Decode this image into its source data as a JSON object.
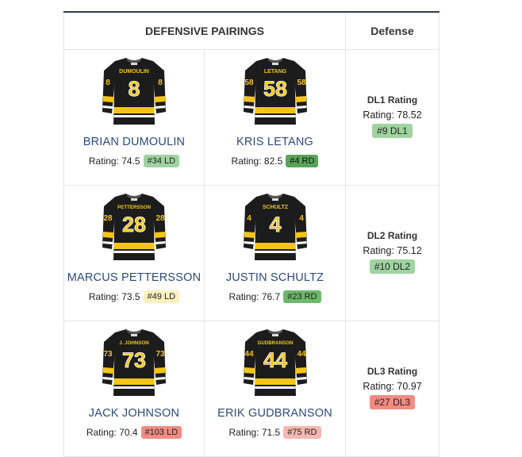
{
  "header": {
    "pairings": "DEFENSIVE PAIRINGS",
    "defense": "Defense"
  },
  "colors": {
    "green_light": "#9fd39f",
    "green_dark": "#5aa45a",
    "yellow": "#fbf0c0",
    "red": "#f28b82",
    "red_light": "#f5b7b1",
    "jersey_black": "#1c1c1c",
    "jersey_gold": "#f4c518"
  },
  "rating_prefix": "Rating:",
  "pairs": [
    {
      "players": [
        {
          "jersey_name": "DUMOULIN",
          "number": "8",
          "name": "BRIAN DUMOULIN",
          "rating": "74.5",
          "badge": "#34 LD",
          "badge_color": "#9fd39f"
        },
        {
          "jersey_name": "LETANG",
          "number": "58",
          "name": "KRIS LETANG",
          "rating": "82.5",
          "badge": "#4 RD",
          "badge_color": "#5aa45a"
        }
      ],
      "dl_label": "DL1 Rating",
      "dl_value": "Rating: 78.52",
      "dl_badge": "#9 DL1",
      "dl_badge_color": "#9fd39f"
    },
    {
      "players": [
        {
          "jersey_name": "PETTERSSON",
          "number": "28",
          "name": "MARCUS PETTERSSON",
          "rating": "73.5",
          "badge": "#49 LD",
          "badge_color": "#fbf0c0"
        },
        {
          "jersey_name": "SCHULTZ",
          "number": "4",
          "name": "JUSTIN SCHULTZ",
          "rating": "76.7",
          "badge": "#23 RD",
          "badge_color": "#6db86d"
        }
      ],
      "dl_label": "DL2 Rating",
      "dl_value": "Rating: 75.12",
      "dl_badge": "#10 DL2",
      "dl_badge_color": "#9fd39f"
    },
    {
      "players": [
        {
          "jersey_name": "J. JOHNSON",
          "number": "73",
          "name": "JACK JOHNSON",
          "rating": "70.4",
          "badge": "#103 LD",
          "badge_color": "#f28b82"
        },
        {
          "jersey_name": "GUDBRANSON",
          "number": "44",
          "name": "ERIK GUDBRANSON",
          "rating": "71.5",
          "badge": "#75 RD",
          "badge_color": "#f5b7b1"
        }
      ],
      "dl_label": "DL3 Rating",
      "dl_value": "Rating: 70.97",
      "dl_badge": "#27 DL3",
      "dl_badge_color": "#f28b82"
    }
  ]
}
